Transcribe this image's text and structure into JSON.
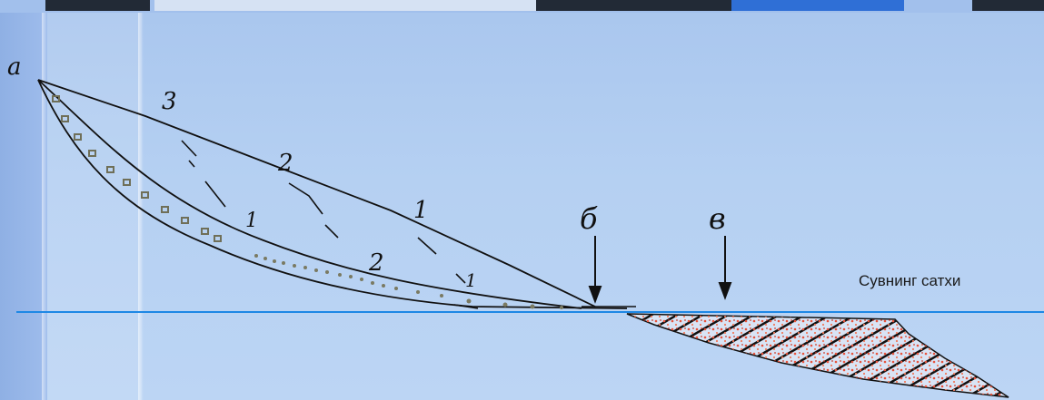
{
  "labels": {
    "alpha": "a",
    "beta": "б",
    "v": "в",
    "line3": "3",
    "line2_upper": "2",
    "line1_upper": "1",
    "line1_mid": "1",
    "line2_lower": "2",
    "line1_lower": "1"
  },
  "water_surface_label": "Сувнинг сатхи",
  "colors": {
    "water_line": "#1e88e5",
    "sediment_hatch": "#111111",
    "sediment_dots": "#e8533c",
    "bead_chain": "#7a7a62"
  }
}
